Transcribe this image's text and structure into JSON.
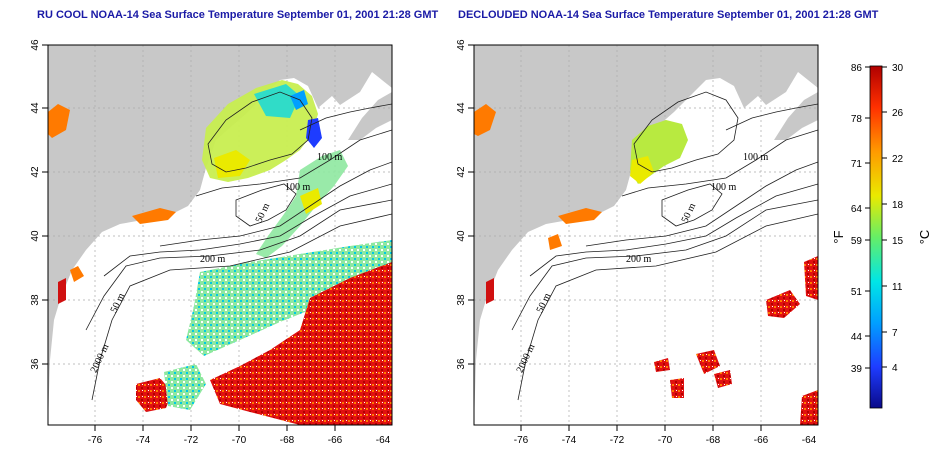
{
  "titles": {
    "left": "RU COOL NOAA-14 Sea Surface Temperature September 01, 2001 21:28 GMT",
    "right": "DECLOUDED NOAA-14 Sea Surface Temperature September 01, 2001 21:28 GMT"
  },
  "axes": {
    "lat_ticks": [
      "46",
      "44",
      "42",
      "40",
      "38",
      "36"
    ],
    "lon_ticks": [
      "-76",
      "-74",
      "-72",
      "-70",
      "-68",
      "-66",
      "-64"
    ]
  },
  "contour_labels": {
    "left": [
      "100 m",
      "100 m",
      "50 m",
      "200 m",
      "50 m",
      "2000 m"
    ],
    "right": [
      "100 m",
      "100 m",
      "50 m",
      "200 m",
      "50 m",
      "2000 m"
    ]
  },
  "colorbar": {
    "fahrenheit_ticks": [
      "86",
      "78",
      "71",
      "64",
      "59",
      "51",
      "44",
      "39"
    ],
    "celsius_ticks": [
      "30",
      "26",
      "22",
      "18",
      "15",
      "11",
      "7",
      "4"
    ],
    "unit_f": "°F",
    "unit_c": "°C",
    "colors": [
      "#0a0a8a",
      "#1e3cff",
      "#00a0ff",
      "#00e6e6",
      "#66ee66",
      "#eaea00",
      "#ff9a00",
      "#ff3000",
      "#b00000"
    ]
  },
  "land_color": "#c8c8c8"
}
